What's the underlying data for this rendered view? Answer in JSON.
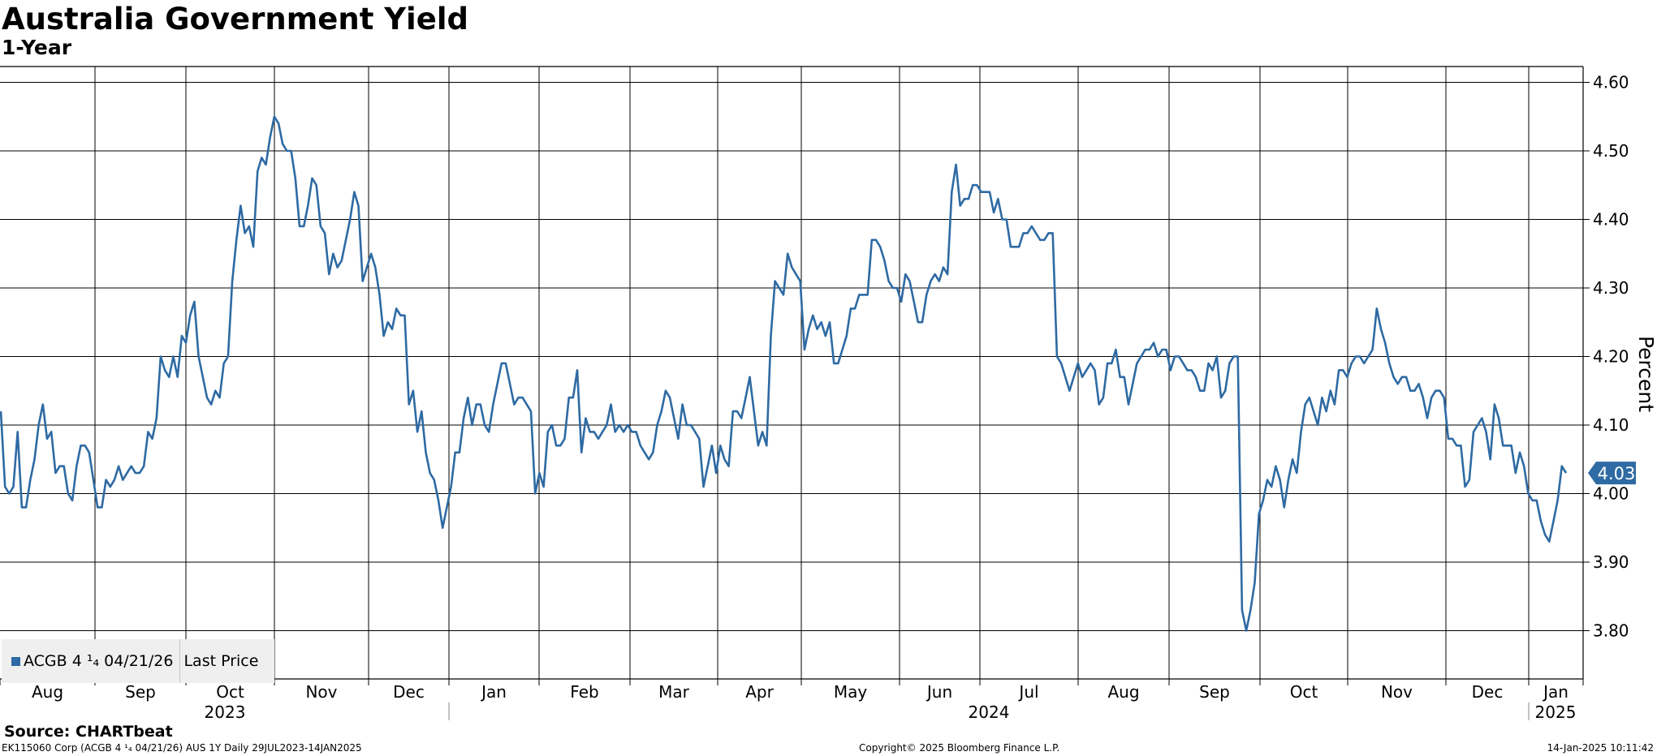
{
  "header": {
    "title": "Australia Government Yield",
    "subtitle": "1-Year"
  },
  "legend": {
    "instrument": "ACGB 4 ¹₄ 04/21/26",
    "field": "Last Price",
    "color": "#2e6aa3"
  },
  "footer": {
    "source": "Source: CHARTbeat",
    "left": "EK115060 Corp (ACGB 4 ¹₄ 04/21/26) AUS 1Y  Daily 29JUL2023-14JAN2025",
    "center": "Copyright© 2025 Bloomberg Finance L.P.",
    "right": "14-Jan-2025 10:11:42"
  },
  "chart_data": {
    "type": "line",
    "title": "Australia Government Yield",
    "subtitle": "1-Year",
    "ylabel": "Percent",
    "ylim": [
      3.75,
      4.62
    ],
    "yticks": [
      "3.80",
      "3.90",
      "4.00",
      "4.10",
      "4.20",
      "4.30",
      "4.40",
      "4.50",
      "4.60"
    ],
    "month_labels": [
      "Aug",
      "Sep",
      "Oct",
      "Nov",
      "Dec",
      "Jan",
      "Feb",
      "Mar",
      "Apr",
      "May",
      "Jun",
      "Jul",
      "Aug",
      "Sep",
      "Oct",
      "Nov",
      "Dec",
      "Jan"
    ],
    "year_labels": [
      "2023",
      "2024",
      "2025"
    ],
    "last_value": "4.03",
    "grid": true,
    "series": [
      {
        "name": "ACGB 4 ¹₄ 04/21/26",
        "color": "#2e6aa3",
        "values": [
          4.12,
          4.01,
          4.0,
          4.01,
          4.09,
          3.98,
          3.98,
          4.02,
          4.05,
          4.1,
          4.13,
          4.08,
          4.09,
          4.03,
          4.04,
          4.04,
          4.0,
          3.99,
          4.04,
          4.07,
          4.07,
          4.06,
          4.02,
          3.98,
          3.98,
          4.02,
          4.01,
          4.02,
          4.04,
          4.02,
          4.03,
          4.04,
          4.03,
          4.03,
          4.04,
          4.09,
          4.08,
          4.11,
          4.2,
          4.18,
          4.17,
          4.2,
          4.17,
          4.23,
          4.22,
          4.26,
          4.28,
          4.2,
          4.17,
          4.14,
          4.13,
          4.15,
          4.14,
          4.19,
          4.2,
          4.31,
          4.37,
          4.42,
          4.38,
          4.39,
          4.36,
          4.47,
          4.49,
          4.48,
          4.52,
          4.55,
          4.54,
          4.51,
          4.5,
          4.5,
          4.46,
          4.39,
          4.39,
          4.42,
          4.46,
          4.45,
          4.39,
          4.38,
          4.32,
          4.35,
          4.33,
          4.34,
          4.37,
          4.4,
          4.44,
          4.42,
          4.31,
          4.33,
          4.35,
          4.33,
          4.29,
          4.23,
          4.25,
          4.24,
          4.27,
          4.26,
          4.26,
          4.13,
          4.15,
          4.09,
          4.12,
          4.06,
          4.03,
          4.02,
          3.99,
          3.95,
          3.98,
          4.01,
          4.06,
          4.06,
          4.11,
          4.14,
          4.1,
          4.13,
          4.13,
          4.1,
          4.09,
          4.13,
          4.16,
          4.19,
          4.19,
          4.16,
          4.13,
          4.14,
          4.14,
          4.13,
          4.12,
          4.0,
          4.03,
          4.01,
          4.09,
          4.1,
          4.07,
          4.07,
          4.08,
          4.14,
          4.14,
          4.18,
          4.06,
          4.11,
          4.09,
          4.09,
          4.08,
          4.09,
          4.1,
          4.13,
          4.09,
          4.1,
          4.09,
          4.1,
          4.09,
          4.09,
          4.07,
          4.06,
          4.05,
          4.06,
          4.1,
          4.12,
          4.15,
          4.14,
          4.11,
          4.08,
          4.13,
          4.1,
          4.1,
          4.09,
          4.08,
          4.01,
          4.04,
          4.07,
          4.03,
          4.07,
          4.05,
          4.04,
          4.12,
          4.12,
          4.11,
          4.14,
          4.17,
          4.12,
          4.07,
          4.09,
          4.07,
          4.23,
          4.31,
          4.3,
          4.29,
          4.35,
          4.33,
          4.32,
          4.31,
          4.21,
          4.24,
          4.26,
          4.24,
          4.25,
          4.23,
          4.25,
          4.19,
          4.19,
          4.21,
          4.23,
          4.27,
          4.27,
          4.29,
          4.29,
          4.29,
          4.37,
          4.37,
          4.36,
          4.34,
          4.31,
          4.3,
          4.3,
          4.28,
          4.32,
          4.31,
          4.28,
          4.25,
          4.25,
          4.29,
          4.31,
          4.32,
          4.31,
          4.33,
          4.32,
          4.44,
          4.48,
          4.42,
          4.43,
          4.43,
          4.45,
          4.45,
          4.44,
          4.44,
          4.44,
          4.41,
          4.43,
          4.4,
          4.4,
          4.36,
          4.36,
          4.36,
          4.38,
          4.38,
          4.39,
          4.38,
          4.37,
          4.37,
          4.38,
          4.38,
          4.2,
          4.19,
          4.17,
          4.15,
          4.17,
          4.19,
          4.17,
          4.18,
          4.19,
          4.18,
          4.13,
          4.14,
          4.19,
          4.19,
          4.21,
          4.17,
          4.17,
          4.13,
          4.16,
          4.19,
          4.2,
          4.21,
          4.21,
          4.22,
          4.2,
          4.21,
          4.21,
          4.18,
          4.2,
          4.2,
          4.19,
          4.18,
          4.18,
          4.17,
          4.15,
          4.15,
          4.19,
          4.18,
          4.2,
          4.14,
          4.15,
          4.19,
          4.2,
          4.2,
          3.83,
          3.8,
          3.83,
          3.87,
          3.97,
          3.99,
          4.02,
          4.01,
          4.04,
          4.02,
          3.98,
          4.02,
          4.05,
          4.03,
          4.09,
          4.13,
          4.14,
          4.12,
          4.1,
          4.14,
          4.12,
          4.15,
          4.13,
          4.18,
          4.18,
          4.17,
          4.19,
          4.2,
          4.2,
          4.19,
          4.2,
          4.21,
          4.27,
          4.24,
          4.22,
          4.19,
          4.17,
          4.16,
          4.17,
          4.17,
          4.15,
          4.15,
          4.16,
          4.14,
          4.11,
          4.14,
          4.15,
          4.15,
          4.14,
          4.08,
          4.08,
          4.07,
          4.07,
          4.01,
          4.02,
          4.09,
          4.1,
          4.11,
          4.09,
          4.05,
          4.13,
          4.11,
          4.07,
          4.07,
          4.07,
          4.03,
          4.06,
          4.04,
          4.0,
          3.99,
          3.99,
          3.96,
          3.94,
          3.93,
          3.96,
          3.99,
          4.04,
          4.03
        ]
      }
    ]
  }
}
